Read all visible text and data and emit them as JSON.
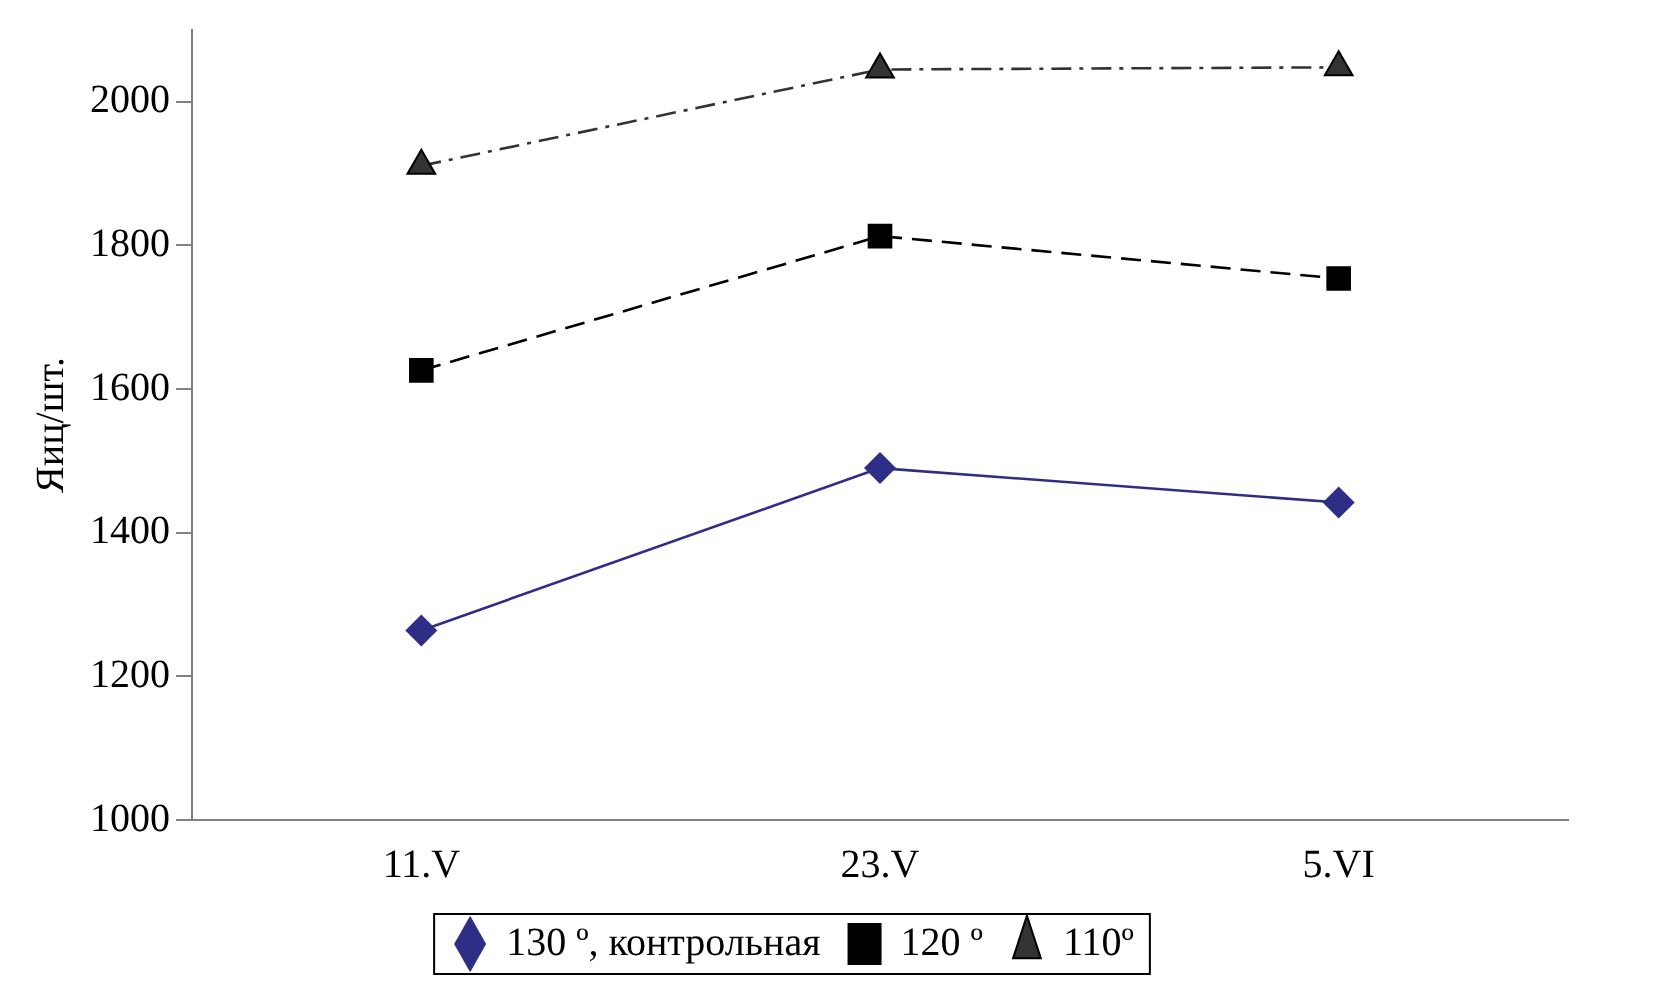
{
  "chart_data": {
    "type": "line",
    "ylabel": "Яиц/шт.",
    "categories": [
      "11.V",
      "23.V",
      "5.VI"
    ],
    "series": [
      {
        "name": "130 º, контрольная",
        "color": "#2e2e87",
        "values": [
          1264,
          1490,
          1442
        ],
        "marker": "diamond",
        "line_style": "solid"
      },
      {
        "name": "120 º",
        "color": "#000000",
        "values": [
          1626,
          1813,
          1754
        ],
        "marker": "square",
        "line_style": "dashed"
      },
      {
        "name": "110º",
        "color": "#333333",
        "values": [
          1911,
          2045,
          2048
        ],
        "marker": "triangle",
        "line_style": "dotted"
      }
    ],
    "ylim": [
      1000,
      2100
    ],
    "yticks": [
      1000,
      1200,
      1400,
      1600,
      1800,
      2000
    ],
    "grid": false,
    "legend": "bottom"
  }
}
